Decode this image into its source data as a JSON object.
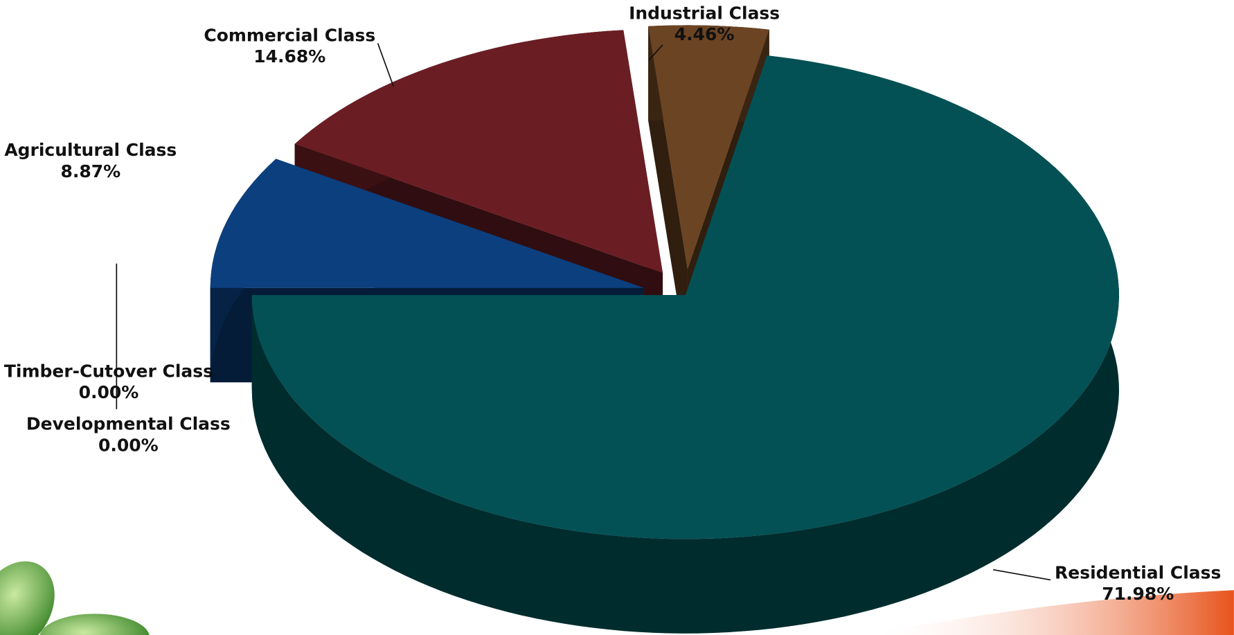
{
  "chart_data": {
    "type": "pie",
    "categories": [
      "Residential Class",
      "Industrial Class",
      "Commercial Class",
      "Agricultural Class",
      "Timber-Cutover Class",
      "Developmental Class"
    ],
    "values": [
      71.98,
      4.46,
      14.68,
      8.87,
      0.0,
      0.0
    ],
    "value_labels": [
      "71.98%",
      "4.46%",
      "14.68%",
      "8.87%",
      "0.00%",
      "0.00%"
    ],
    "colors": [
      "#035155",
      "#6b4423",
      "#6a1e24",
      "#0c3f7e",
      "#5a4210",
      "#3a3a3a"
    ]
  }
}
